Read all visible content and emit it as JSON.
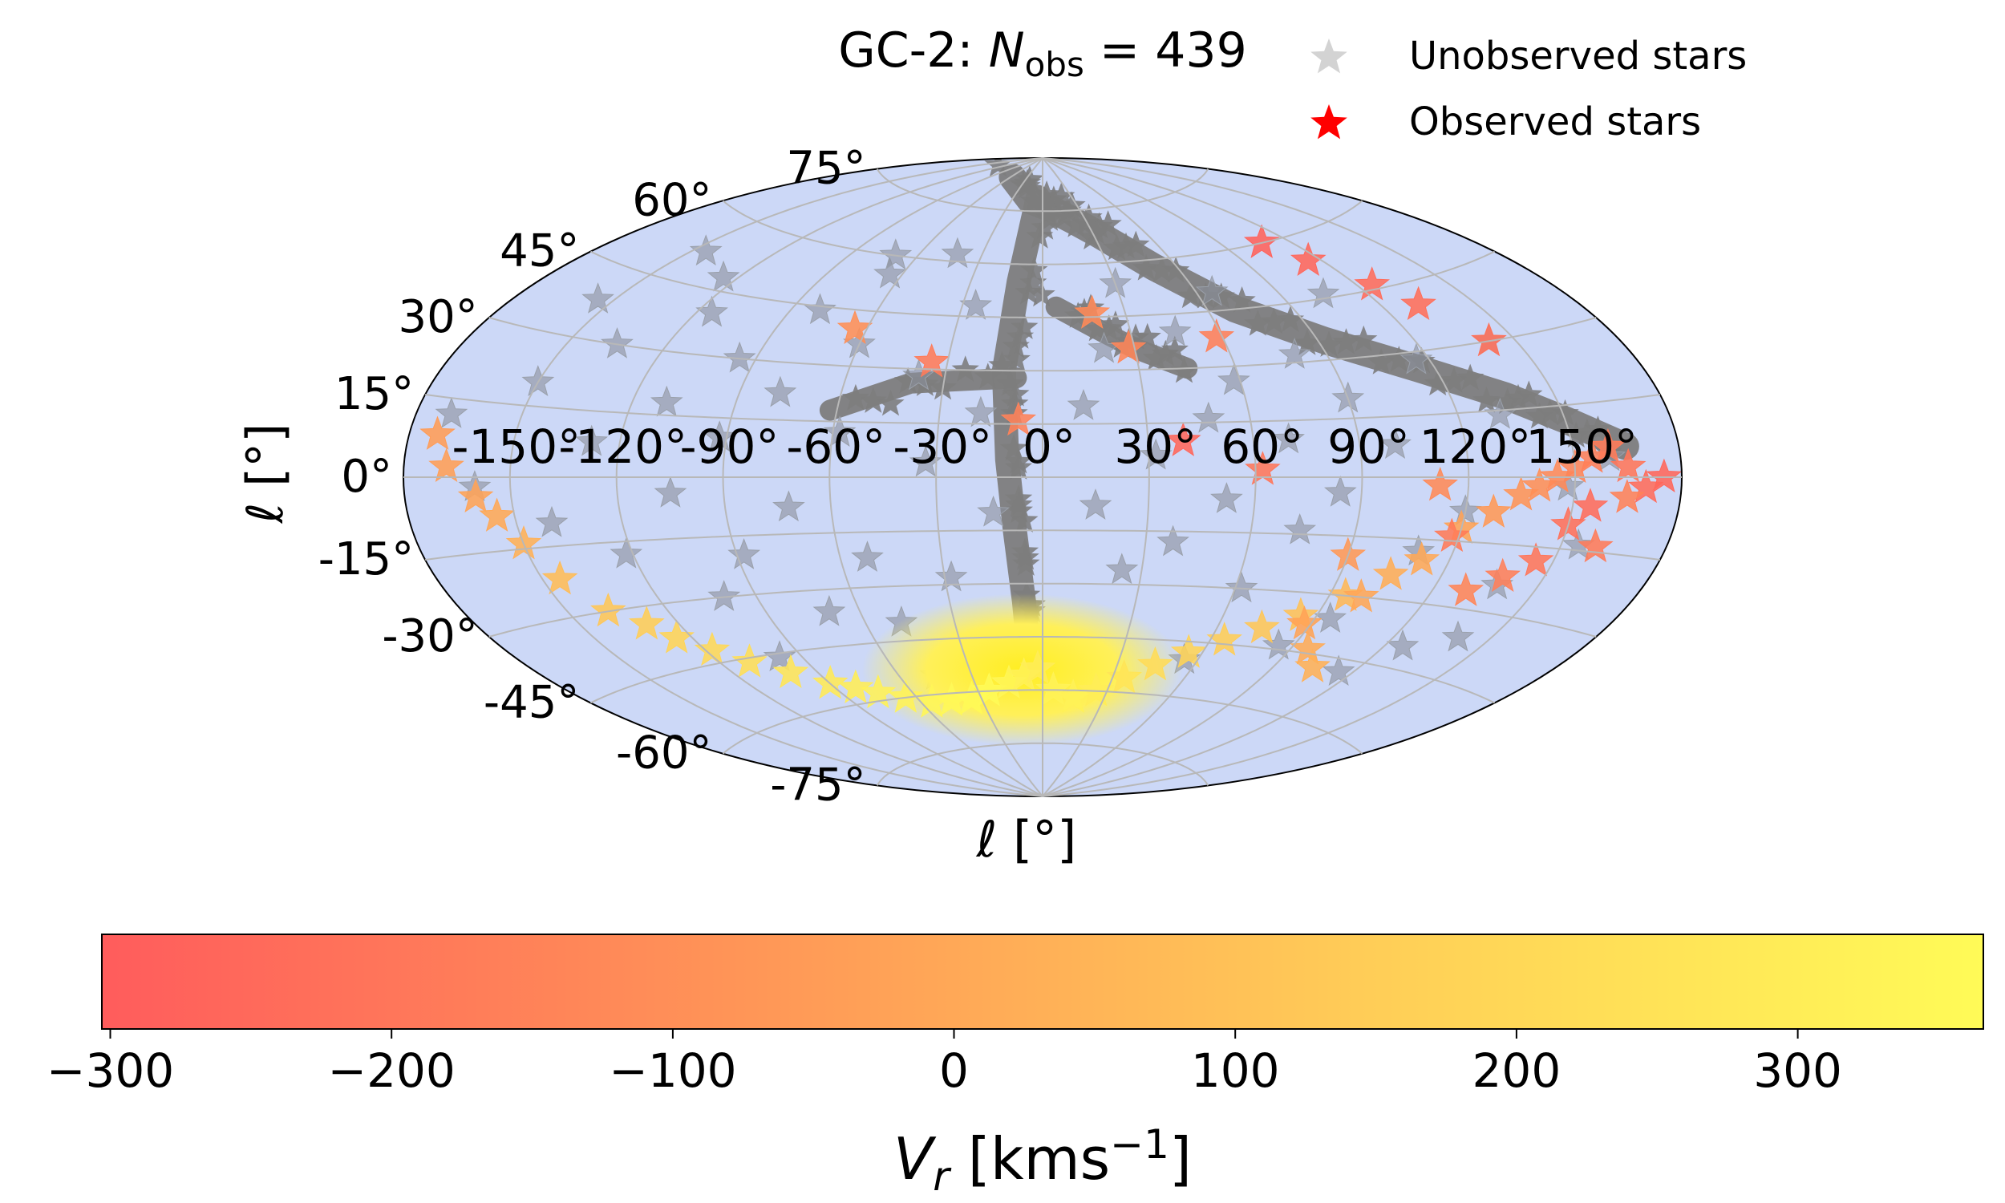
{
  "chart_data": [
    {
      "type": "scatter",
      "projection": "aitoff",
      "title": "GC-2: N_obs = 439",
      "title_prefix": "GC-2: ",
      "title_var": "N",
      "title_sub": "obs",
      "title_rest": " = 439",
      "xlabel": "ℓ [°]",
      "ylabel": "ℓ [°]",
      "xtick_labels": [
        "-150°",
        "-120°",
        "-90°",
        "-60°",
        "-30°",
        "0°",
        "30°",
        "60°",
        "90°",
        "120°",
        "150°"
      ],
      "xtick_values": [
        -150,
        -120,
        -90,
        -60,
        -30,
        0,
        30,
        60,
        90,
        120,
        150
      ],
      "ytick_labels": [
        "75°",
        "60°",
        "45°",
        "30°",
        "15°",
        "0°",
        "-15°",
        "-30°",
        "-45°",
        "-60°",
        "-75°"
      ],
      "ytick_values": [
        75,
        60,
        45,
        30,
        15,
        0,
        -15,
        -30,
        -45,
        -60,
        -75
      ],
      "xlim": [
        -180,
        180
      ],
      "ylim": [
        -90,
        90
      ],
      "grid": true,
      "legend_position": "top-right",
      "legend": [
        "Unobserved stars",
        "Observed stars"
      ],
      "colors": {
        "background": "#ccd8f7",
        "unobserved": "#8a8f9b",
        "stream": "#7d7d7d",
        "observed_legend": "#ff0000",
        "grid": "#b8b8b8"
      },
      "series": [
        {
          "name": "Unobserved stars",
          "stream_path": [
            [
              -57,
              84
            ],
            [
              -12,
              78
            ],
            [
              5,
              76
            ],
            [
              22,
              72
            ],
            [
              33,
              68
            ],
            [
              50,
              58
            ],
            [
              70,
              45
            ],
            [
              92,
              35
            ],
            [
              115,
              26
            ],
            [
              136,
              18
            ],
            [
              150,
              12
            ],
            [
              165,
              6
            ]
          ],
          "stream_branch": [
            [
              -5,
              79
            ],
            [
              -10,
              55
            ],
            [
              -12,
              30
            ],
            [
              -10,
              5
            ],
            [
              -8,
              -15
            ],
            [
              -6,
              -35
            ],
            [
              -5,
              -55
            ]
          ],
          "stream_arm": [
            [
              -8,
              28
            ],
            [
              -40,
              26
            ],
            [
              -62,
              18
            ]
          ],
          "stream_arm2": [
            [
              5,
              48
            ],
            [
              18,
              42
            ],
            [
              30,
              36
            ],
            [
              45,
              30
            ]
          ],
          "points": [
            [
              -170,
              12
            ],
            [
              -160,
              -2
            ],
            [
              -150,
              20
            ],
            [
              -140,
              -10
            ],
            [
              -135,
              30
            ],
            [
              -128,
              8
            ],
            [
              -122,
              -18
            ],
            [
              -115,
              40
            ],
            [
              -110,
              18
            ],
            [
              -105,
              -4
            ],
            [
              -100,
              -30
            ],
            [
              -95,
              30
            ],
            [
              -92,
              10
            ],
            [
              -88,
              -20
            ],
            [
              -80,
              44
            ],
            [
              -78,
              22
            ],
            [
              -72,
              -8
            ],
            [
              -70,
              -36
            ],
            [
              -65,
              55
            ],
            [
              -60,
              36
            ],
            [
              -58,
              12
            ],
            [
              -52,
              -22
            ],
            [
              -48,
              -40
            ],
            [
              -42,
              62
            ],
            [
              -38,
              28
            ],
            [
              -33,
              4
            ],
            [
              -28,
              -28
            ],
            [
              -25,
              48
            ],
            [
              -18,
              18
            ],
            [
              -14,
              -10
            ],
            [
              12,
              20
            ],
            [
              15,
              -8
            ],
            [
              20,
              36
            ],
            [
              24,
              -26
            ],
            [
              30,
              54
            ],
            [
              32,
              6
            ],
            [
              38,
              -18
            ],
            [
              45,
              40
            ],
            [
              48,
              16
            ],
            [
              52,
              -6
            ],
            [
              58,
              26
            ],
            [
              62,
              -30
            ],
            [
              66,
              50
            ],
            [
              70,
              10
            ],
            [
              74,
              -14
            ],
            [
              80,
              32
            ],
            [
              84,
              -4
            ],
            [
              90,
              20
            ],
            [
              95,
              -36
            ],
            [
              100,
              8
            ],
            [
              105,
              46
            ],
            [
              110,
              -18
            ],
            [
              116,
              28
            ],
            [
              120,
              -8
            ],
            [
              126,
              -40
            ],
            [
              132,
              14
            ],
            [
              138,
              -24
            ],
            [
              142,
              30
            ],
            [
              148,
              -2
            ],
            [
              155,
              -14
            ],
            [
              160,
              4
            ],
            [
              -155,
              38
            ],
            [
              -145,
              52
            ],
            [
              -125,
              48
            ],
            [
              -98,
              -46
            ],
            [
              -70,
              60
            ],
            [
              -45,
              -55
            ],
            [
              55,
              -50
            ],
            [
              85,
              -44
            ],
            [
              115,
              -48
            ],
            [
              140,
              -36
            ]
          ],
          "dense_region_center": [
            -8,
            -52
          ]
        },
        {
          "name": "Observed stars",
          "x": [
            -172,
            -168,
            -160,
            -155,
            -150,
            -145,
            -138,
            -130,
            -125,
            -118,
            -110,
            -100,
            -90,
            -82,
            -75,
            -65,
            -55,
            -45,
            -35,
            -25,
            -15,
            -8,
            -2,
            5,
            15,
            25,
            35,
            45,
            55,
            65,
            75,
            85,
            95,
            105,
            112,
            120,
            128,
            135,
            140,
            145,
            150,
            155,
            160,
            165,
            170,
            175,
            -64,
            -35,
            -7,
            18,
            28,
            58,
            40,
            62,
            112,
            90,
            100,
            118,
            130,
            138,
            145,
            150,
            155,
            160,
            165,
            108,
            115,
            125,
            132,
            142,
            88,
            96,
            104
          ],
          "y": [
            8,
            2,
            -4,
            -8,
            -14,
            -22,
            -30,
            -34,
            -38,
            -42,
            -46,
            -50,
            -54,
            -56,
            -58,
            -60,
            -62,
            -62,
            -62,
            -60,
            -58,
            -56,
            -54,
            -60,
            -62,
            -60,
            -56,
            -52,
            -48,
            -44,
            -40,
            -36,
            -30,
            -24,
            -20,
            -12,
            -8,
            -4,
            -2,
            0,
            2,
            4,
            6,
            2,
            -2,
            0,
            40,
            32,
            16,
            46,
            36,
            38,
            10,
            2,
            -2,
            -20,
            -30,
            -14,
            -26,
            -22,
            -18,
            -10,
            -6,
            -14,
            -4,
            60,
            54,
            46,
            40,
            30,
            -38,
            -44,
            -48
          ],
          "vr": [
            -50,
            -40,
            -20,
            0,
            30,
            80,
            120,
            150,
            180,
            200,
            230,
            260,
            280,
            300,
            320,
            330,
            340,
            350,
            355,
            360,
            340,
            320,
            300,
            330,
            320,
            300,
            260,
            220,
            180,
            150,
            120,
            100,
            60,
            20,
            0,
            -20,
            -60,
            -80,
            -100,
            -120,
            -140,
            -160,
            -180,
            -200,
            -240,
            -260,
            -100,
            -180,
            -150,
            -120,
            -140,
            -160,
            -260,
            -200,
            -120,
            -60,
            -10,
            -180,
            -140,
            -160,
            -200,
            -220,
            -240,
            -180,
            -150,
            -280,
            -260,
            -240,
            -230,
            -220,
            -20,
            10,
            30
          ]
        }
      ],
      "colorbar": {
        "label": "V_r [kms^-1]",
        "label_var": "V",
        "label_sub": "r",
        "label_unit": " [kms",
        "label_exp": "−1",
        "label_close": "]",
        "range": [
          -303,
          366
        ],
        "tick_values": [
          -300,
          -200,
          -100,
          0,
          100,
          200,
          300
        ],
        "tick_labels": [
          "−300",
          "−200",
          "−100",
          "0",
          "100",
          "200",
          "300"
        ],
        "colors": [
          "#ff5c5c",
          "#ff9457",
          "#ffcc57",
          "#fffb57"
        ]
      }
    }
  ]
}
